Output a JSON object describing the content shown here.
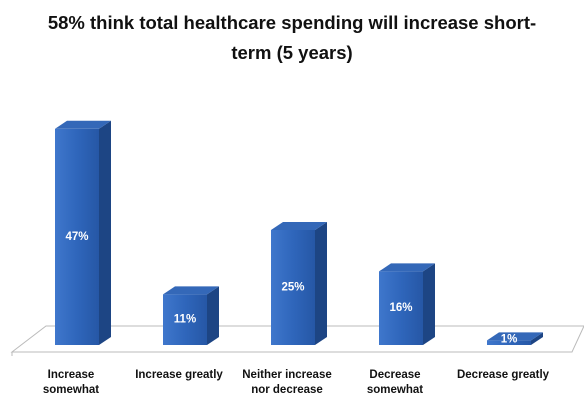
{
  "chart_data": {
    "type": "bar3d",
    "title": "58% think total healthcare spending will increase short-term (5 years)",
    "categories": [
      "Increase somewhat",
      "Increase greatly",
      "Neither increase nor decrease",
      "Decrease somewhat",
      "Decrease greatly"
    ],
    "values": [
      47,
      11,
      25,
      16,
      1
    ],
    "value_labels": [
      "47%",
      "11%",
      "25%",
      "16%",
      "1%"
    ],
    "color": "#2e63b5"
  }
}
